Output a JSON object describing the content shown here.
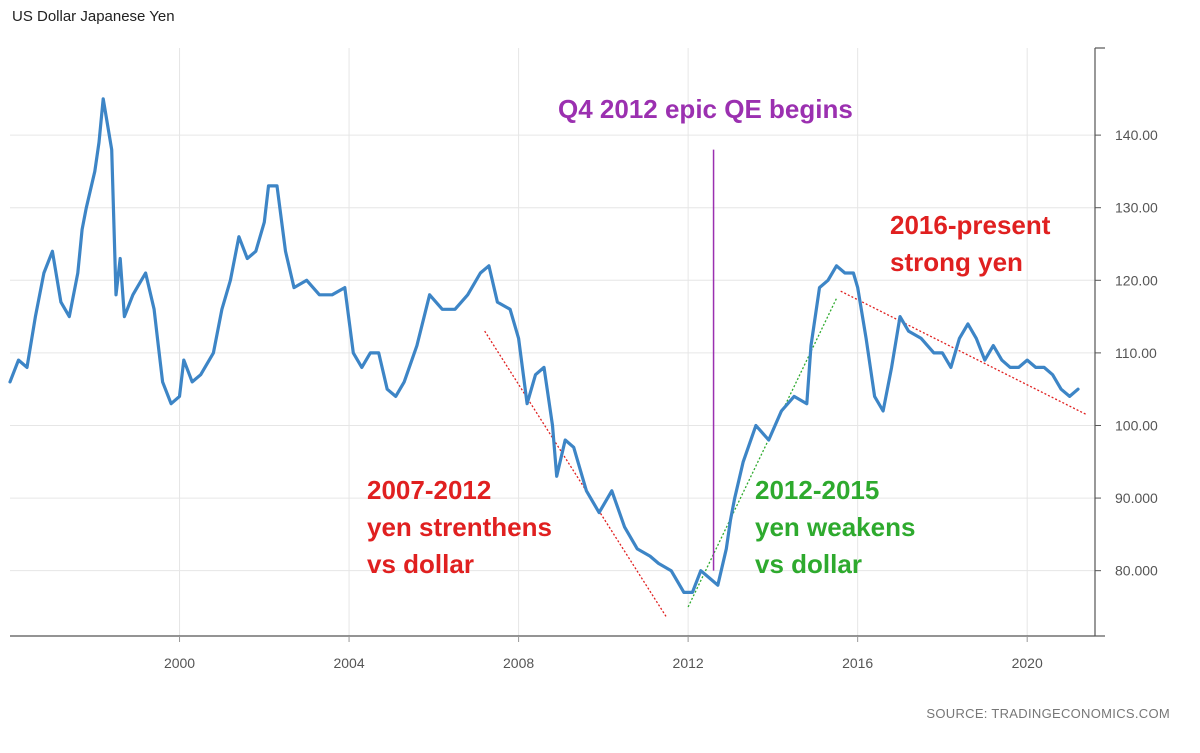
{
  "chart_data": {
    "type": "line",
    "title": "US Dollar Japanese Yen",
    "source": "SOURCE: TRADINGECONOMICS.COM",
    "xlabel": "",
    "ylabel": "",
    "xlim": [
      1996.0,
      2021.6
    ],
    "ylim": [
      71.0,
      152.0
    ],
    "grid": true,
    "y_axis_side": "right",
    "x_ticks": [
      2000,
      2004,
      2008,
      2012,
      2016,
      2020
    ],
    "x_tick_labels": [
      "2000",
      "2004",
      "2008",
      "2012",
      "2016",
      "2020"
    ],
    "y_ticks": [
      80,
      90,
      100,
      110,
      120,
      130,
      140
    ],
    "y_tick_labels": [
      "80.000",
      "90.000",
      "100.00",
      "110.00",
      "120.00",
      "130.00",
      "140.00"
    ],
    "series": [
      {
        "color": "#3d85c6",
        "x": [
          1996.0,
          1996.2,
          1996.4,
          1996.6,
          1996.8,
          1997.0,
          1997.2,
          1997.4,
          1997.6,
          1997.7,
          1997.8,
          1998.0,
          1998.1,
          1998.2,
          1998.4,
          1998.5,
          1998.6,
          1998.7,
          1998.9,
          1999.0,
          1999.2,
          1999.4,
          1999.5,
          1999.6,
          1999.8,
          2000.0,
          2000.1,
          2000.3,
          2000.5,
          2000.8,
          2001.0,
          2001.2,
          2001.4,
          2001.6,
          2001.8,
          2002.0,
          2002.1,
          2002.3,
          2002.5,
          2002.7,
          2003.0,
          2003.3,
          2003.6,
          2003.9,
          2004.1,
          2004.3,
          2004.5,
          2004.7,
          2004.9,
          2005.1,
          2005.3,
          2005.6,
          2005.9,
          2006.2,
          2006.5,
          2006.8,
          2007.1,
          2007.3,
          2007.5,
          2007.8,
          2008.0,
          2008.2,
          2008.4,
          2008.6,
          2008.8,
          2008.9,
          2009.1,
          2009.3,
          2009.6,
          2009.9,
          2010.2,
          2010.5,
          2010.8,
          2011.1,
          2011.3,
          2011.6,
          2011.9,
          2012.1,
          2012.3,
          2012.5,
          2012.7,
          2012.9,
          2013.0,
          2013.1,
          2013.3,
          2013.6,
          2013.9,
          2014.2,
          2014.5,
          2014.8,
          2014.9,
          2015.1,
          2015.3,
          2015.5,
          2015.7,
          2015.9,
          2016.0,
          2016.2,
          2016.4,
          2016.6,
          2016.8,
          2017.0,
          2017.2,
          2017.5,
          2017.8,
          2018.0,
          2018.2,
          2018.4,
          2018.6,
          2018.8,
          2019.0,
          2019.2,
          2019.4,
          2019.6,
          2019.8,
          2020.0,
          2020.2,
          2020.4,
          2020.6,
          2020.8,
          2021.0,
          2021.2
        ],
        "values": [
          106,
          109,
          108,
          115,
          121,
          124,
          117,
          115,
          121,
          127,
          130,
          135,
          139,
          145,
          138,
          118,
          123,
          115,
          118,
          119,
          121,
          116,
          111,
          106,
          103,
          104,
          109,
          106,
          107,
          110,
          116,
          120,
          126,
          123,
          124,
          128,
          133,
          133,
          124,
          119,
          120,
          118,
          118,
          119,
          110,
          108,
          110,
          110,
          105,
          104,
          106,
          111,
          118,
          116,
          116,
          118,
          121,
          122,
          117,
          116,
          112,
          103,
          107,
          108,
          100,
          93,
          98,
          97,
          91,
          88,
          91,
          86,
          83,
          82,
          81,
          80,
          77,
          77,
          80,
          79,
          78,
          83,
          87,
          90,
          95,
          100,
          98,
          102,
          104,
          103,
          111,
          119,
          120,
          122,
          121,
          121,
          119,
          112,
          104,
          102,
          108,
          115,
          113,
          112,
          110,
          110,
          108,
          112,
          114,
          112,
          109,
          111,
          109,
          108,
          108,
          109,
          108,
          108,
          107,
          105,
          104,
          105
        ]
      }
    ],
    "vertical_marker": {
      "x": 2012.6,
      "y_top": 138.0,
      "y_bottom": 80.0,
      "color": "#9b30b0"
    },
    "trend_lines": [
      {
        "name": "2007-2012 trend",
        "color": "#e02020",
        "x": [
          2007.2,
          2011.5
        ],
        "y": [
          113.0,
          73.5
        ]
      },
      {
        "name": "2012-2015 trend",
        "color": "#2eaa2e",
        "x": [
          2012.0,
          2015.5
        ],
        "y": [
          75.0,
          117.5
        ]
      },
      {
        "name": "2016-present trend",
        "color": "#e02020",
        "x": [
          2015.6,
          2021.4
        ],
        "y": [
          118.5,
          101.5
        ]
      }
    ],
    "annotations": [
      {
        "lines": [
          "Q4 2012 epic QE begins"
        ],
        "color": "#9b30b0"
      },
      {
        "lines": [
          "2007-2012",
          "yen strenthens",
          "vs dollar"
        ],
        "color": "#e02020"
      },
      {
        "lines": [
          "2012-2015",
          "yen weakens",
          "vs dollar"
        ],
        "color": "#2eaa2e"
      },
      {
        "lines": [
          "2016-present",
          "strong yen"
        ],
        "color": "#e02020"
      }
    ]
  }
}
